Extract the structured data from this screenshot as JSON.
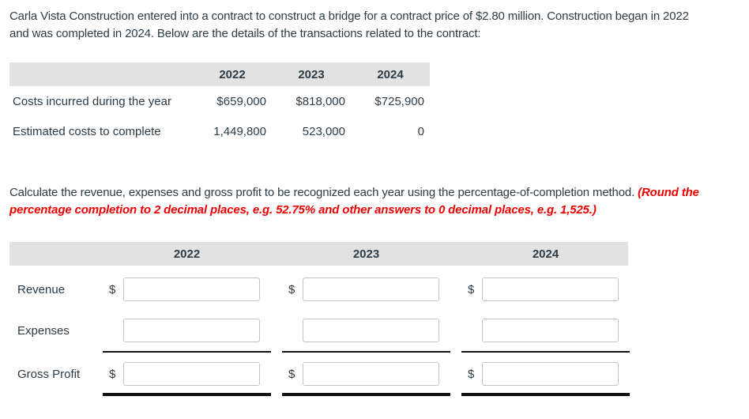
{
  "intro": {
    "line1": "Carla Vista Construction entered into a contract to construct a bridge for a contract price of $2.80 million. Construction began in 2022",
    "line2": "and was completed in 2024. Below are the details of the transactions related to the contract:"
  },
  "transactions_table": {
    "years": [
      "2022",
      "2023",
      "2024"
    ],
    "rows": [
      {
        "label": "Costs incurred during the year",
        "values": [
          "$659,000",
          "$818,000",
          "$725,900"
        ]
      },
      {
        "label": "Estimated costs to complete",
        "values": [
          "1,449,800",
          "523,000",
          "0"
        ]
      }
    ]
  },
  "instruction": {
    "normal": "Calculate the revenue, expenses and gross profit to be recognized each year using the percentage-of-completion method. ",
    "emphasis_line1": "(Round the",
    "emphasis_line2": "percentage completion to 2 decimal places, e.g. 52.75% and other answers to 0 decimal places, e.g. 1,525.)"
  },
  "answer_table": {
    "years": [
      "2022",
      "2023",
      "2024"
    ],
    "rows": [
      {
        "label": "Revenue",
        "currency_symbol": "$",
        "inputs": [
          "",
          "",
          ""
        ]
      },
      {
        "label": "Expenses",
        "currency_symbol": "",
        "inputs": [
          "",
          "",
          ""
        ]
      },
      {
        "label": "Gross Profit",
        "currency_symbol": "$",
        "inputs": [
          "",
          "",
          ""
        ]
      }
    ]
  },
  "colors": {
    "header_bg": "#e2e2e2",
    "text": "#2d3b45",
    "emphasis_red": "#ee0000",
    "rule_line": "#111111",
    "input_border": "#c4c4c4"
  }
}
